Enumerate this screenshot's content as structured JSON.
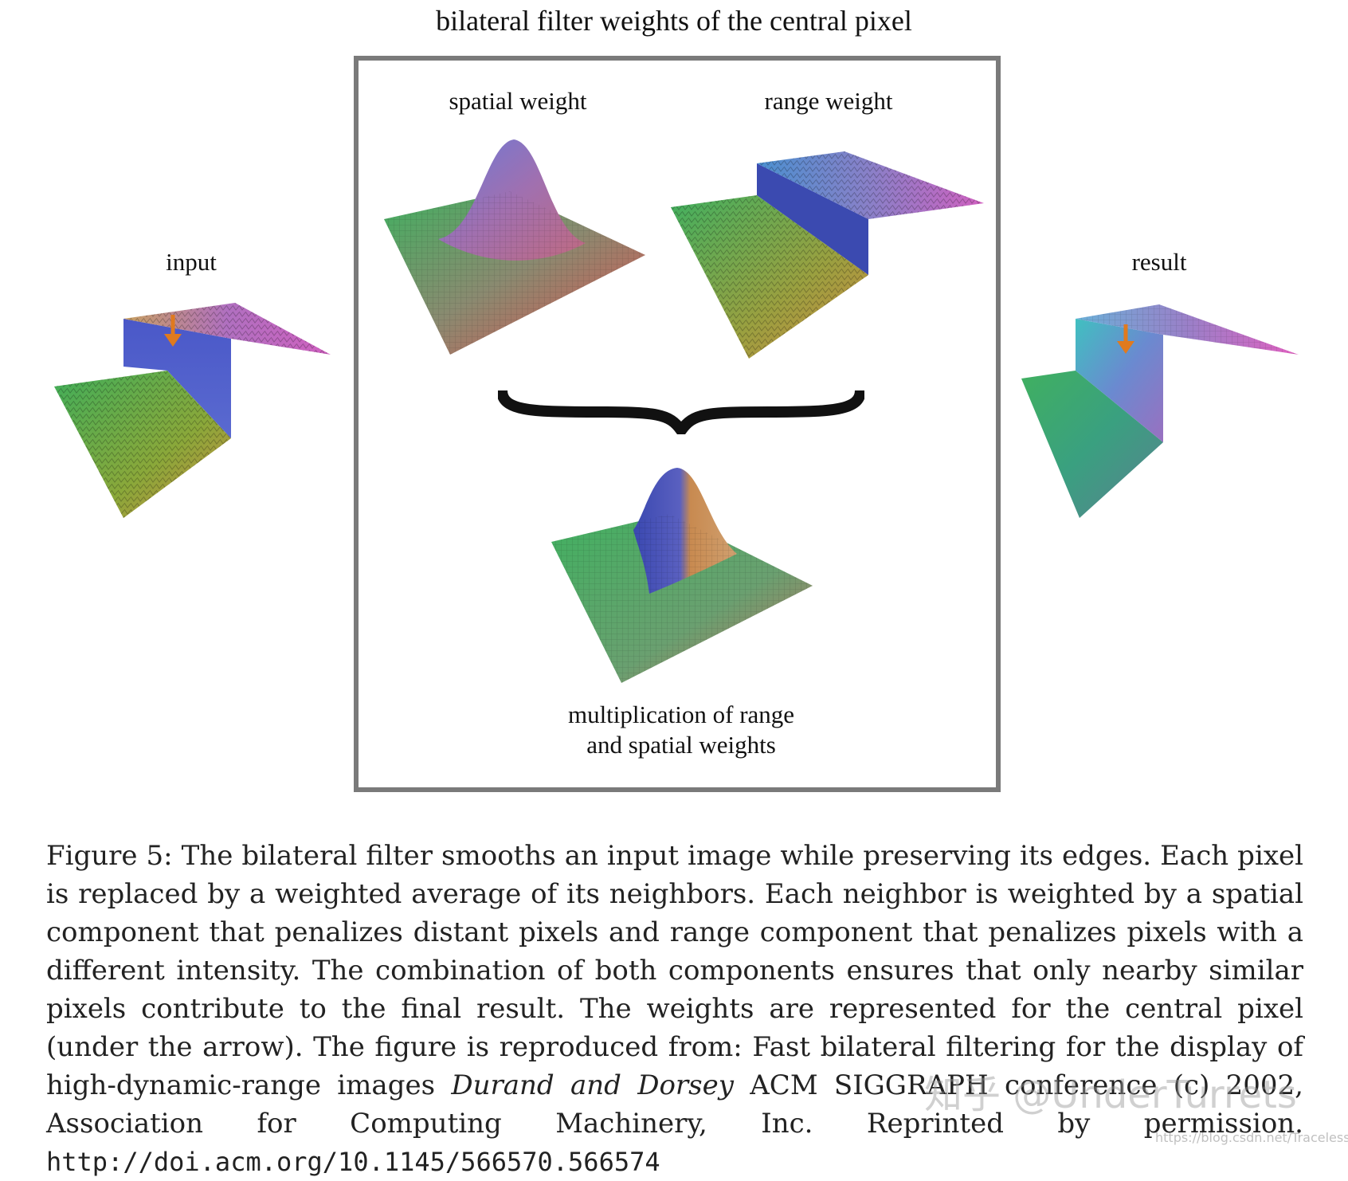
{
  "figure": {
    "title": "bilateral filter weights of the central pixel",
    "labels": {
      "input": "input",
      "spatial": "spatial weight",
      "range": "range weight",
      "result": "result",
      "product_line1": "multiplication of range",
      "product_line2": "and spatial weights"
    }
  },
  "caption": {
    "part1": "Figure 5: The bilateral filter smooths an input image while preserving its edges. Each pixel is replaced by a weighted average of its neighbors. Each neighbor is weighted by a spatial component that penalizes distant pixels and range component that penalizes pixels with a different intensity. The combination of both components ensures that only nearby similar pixels contribute to the final result. The weights are represented for the central pixel (under the arrow). The figure is reproduced from: Fast bilateral filtering for the display of high-dynamic-range images",
    "authors": "Durand and Dorsey",
    "part2": "ACM SIGGRAPH conference (c) 2002, Association for Computing Machinery, Inc. Reprinted by permission.",
    "doi": "http://doi.acm.org/10.1145/566570.566574"
  },
  "watermark": {
    "text": "知乎 @UnderTurrets",
    "url": "https://blog.csdn.net/TracelessLe"
  },
  "colors": {
    "arrow": "#e07a1e",
    "frame": "#7a7a7a",
    "surface_green": "#3fae5a",
    "surface_blue": "#5060c8",
    "surface_magenta": "#d060c0",
    "surface_orange": "#d08a40"
  }
}
